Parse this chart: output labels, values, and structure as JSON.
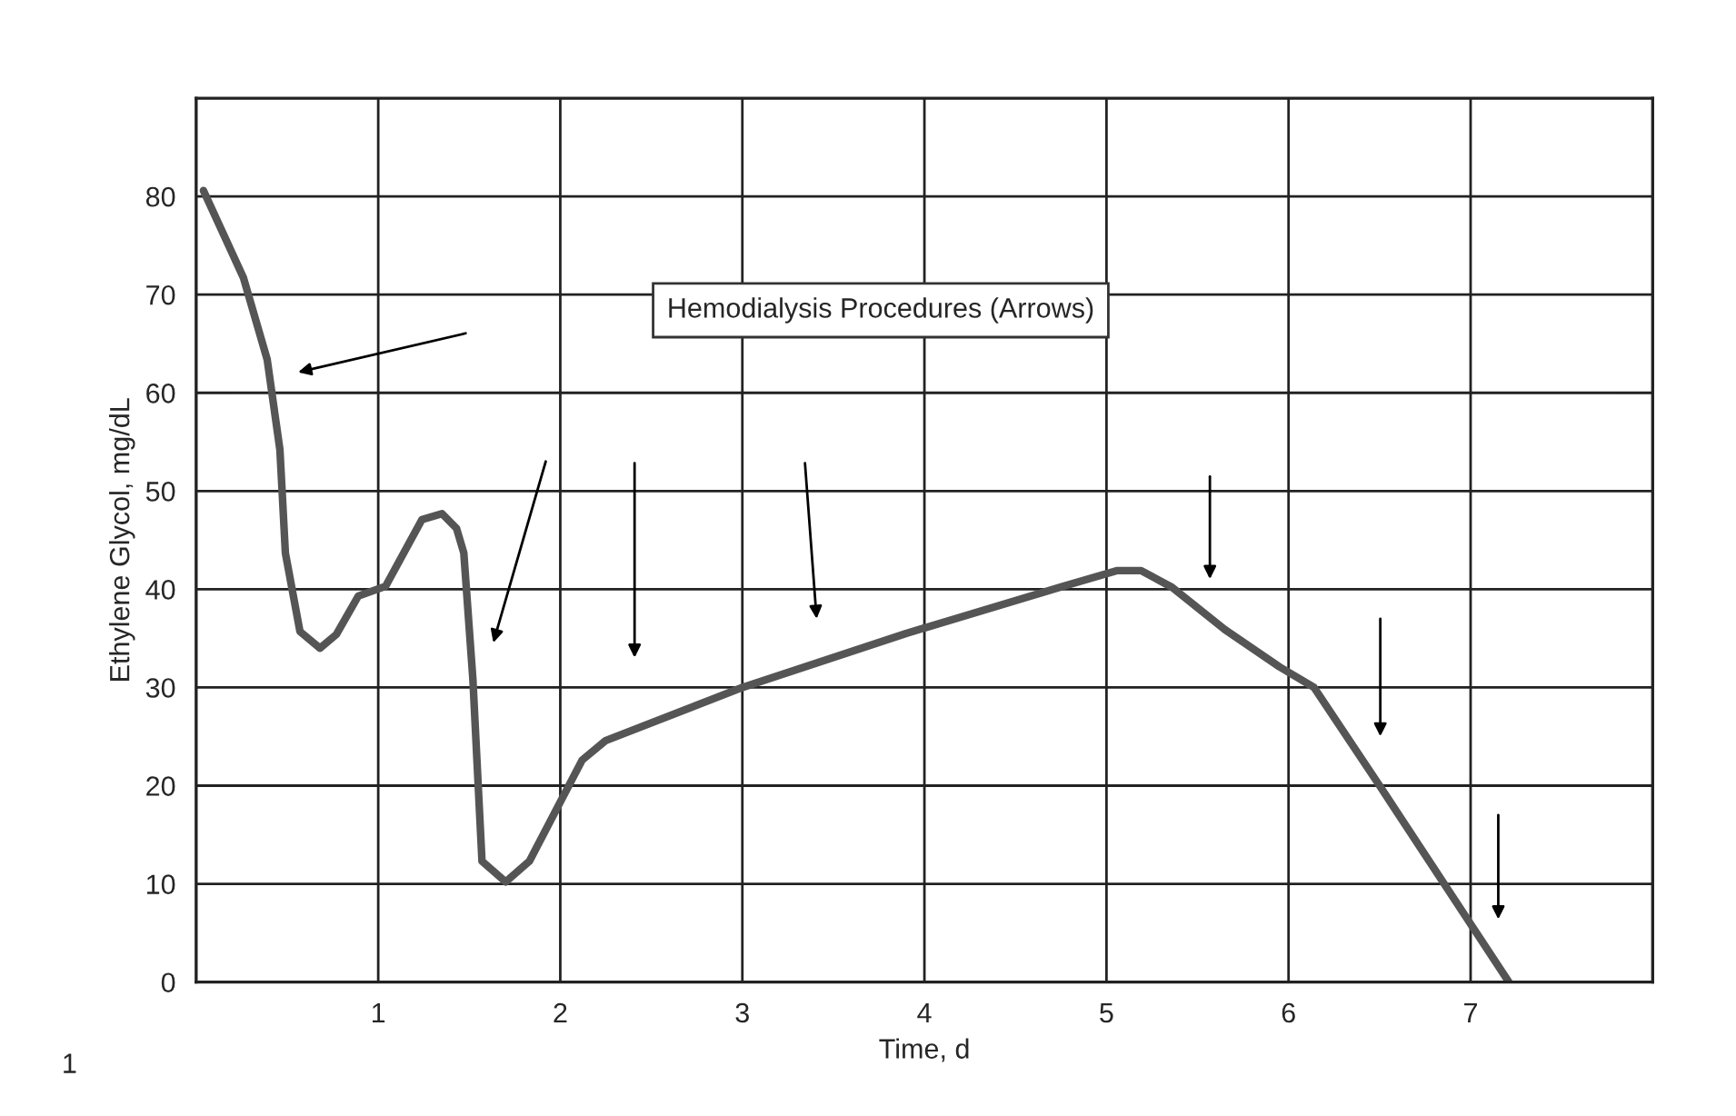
{
  "chart_data": {
    "type": "line",
    "xlabel": "Time, d",
    "ylabel": "Ethylene Glycol, mg/dL",
    "x": [
      0.04,
      0.26,
      0.39,
      0.46,
      0.49,
      0.57,
      0.68,
      0.77,
      0.89,
      1.04,
      1.24,
      1.35,
      1.43,
      1.47,
      1.52,
      1.57,
      1.7,
      1.83,
      2.12,
      2.25,
      3.0,
      3.9,
      4.76,
      5.06,
      5.19,
      5.36,
      5.65,
      5.95,
      6.14,
      6.5,
      7.21
    ],
    "series": [
      {
        "color": "#555555",
        "values": [
          80.6,
          71.7,
          63.4,
          54.2,
          43.7,
          35.7,
          34.0,
          35.4,
          39.3,
          40.3,
          47.1,
          47.7,
          46.2,
          43.7,
          30.8,
          12.3,
          10.2,
          12.3,
          22.6,
          24.6,
          30.0,
          35.5,
          40.3,
          41.9,
          41.9,
          40.2,
          35.9,
          32.1,
          30.0,
          20.0,
          0.0
        ]
      }
    ],
    "xlim": [
      0,
      8
    ],
    "xticks": [
      1,
      2,
      3,
      4,
      5,
      6,
      7
    ],
    "ylim": [
      0,
      90
    ],
    "yticks": [
      0,
      10,
      20,
      30,
      40,
      50,
      60,
      70,
      80
    ],
    "grid": true,
    "legend": false,
    "marker": "none",
    "line_style": "solid",
    "annotations": [
      "Hemodialysis Procedures (Arrows)",
      "1"
    ]
  }
}
